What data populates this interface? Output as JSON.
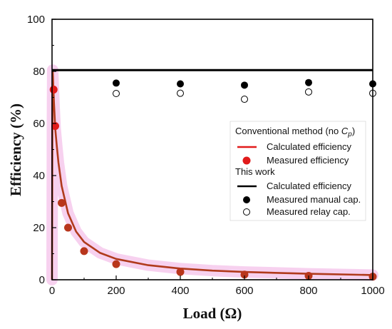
{
  "chart_data": {
    "type": "line",
    "xlabel": "Load (Ω)",
    "ylabel": "Efficiency (%)",
    "xlim": [
      0,
      1000
    ],
    "ylim": [
      0,
      100
    ],
    "xticks": [
      0,
      200,
      400,
      600,
      800,
      1000
    ],
    "yticks": [
      0,
      20,
      40,
      60,
      80,
      100
    ],
    "grid": false,
    "legend_position": "center-right",
    "legend": {
      "group1_title": "Conventional method (no Cp)",
      "group2_title": "This work",
      "items": [
        "Calculated efficiency",
        "Measured efficiency",
        "Calculated efficiency",
        "Measured manual cap.",
        "Measured relay cap."
      ]
    },
    "series": [
      {
        "name": "Calculated efficiency (conventional)",
        "kind": "line",
        "color": "#e11b1b",
        "x": [
          0,
          1,
          2,
          3,
          4,
          6,
          8,
          10,
          15,
          20,
          30,
          50,
          75,
          100,
          150,
          200,
          300,
          400,
          500,
          600,
          800,
          1000
        ],
        "y": [
          0,
          60,
          80.5,
          78,
          74,
          68,
          63,
          58,
          51,
          45,
          36,
          25.5,
          18.5,
          14.5,
          10.3,
          8.0,
          5.6,
          4.3,
          3.5,
          3.0,
          2.3,
          1.8
        ]
      },
      {
        "name": "Measured efficiency (conventional)",
        "kind": "scatter",
        "marker": "filled",
        "color": "#e11b1b",
        "x": [
          5,
          10,
          30,
          50,
          100,
          200,
          400,
          600,
          800,
          1000
        ],
        "y": [
          73,
          59,
          29.5,
          20,
          11,
          6,
          3,
          2,
          1.5,
          1.2
        ]
      },
      {
        "name": "Calculated efficiency (this work)",
        "kind": "line",
        "color": "#000000",
        "x": [
          0,
          1000
        ],
        "y": [
          80.5,
          80.5
        ]
      },
      {
        "name": "Measured manual cap.",
        "kind": "scatter",
        "marker": "filled",
        "color": "#000000",
        "x": [
          200,
          400,
          600,
          800,
          1000
        ],
        "y": [
          75.5,
          75.2,
          74.7,
          75.7,
          75.2
        ]
      },
      {
        "name": "Measured relay cap.",
        "kind": "scatter",
        "marker": "open",
        "color": "#000000",
        "x": [
          200,
          400,
          600,
          800,
          1000
        ],
        "y": [
          71.5,
          71.6,
          69.3,
          72.1,
          71.6
        ]
      }
    ]
  }
}
